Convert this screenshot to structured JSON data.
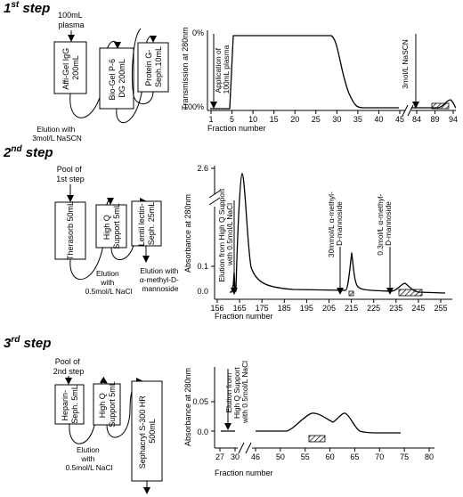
{
  "steps": [
    {
      "heading": "1",
      "heading_sup": "st",
      "heading_word": " step",
      "input_label": [
        "100mL",
        "plasma"
      ],
      "columns": [
        [
          "Affi-Gel IgG",
          "200mL"
        ],
        [
          "Bio-Gel P-6",
          "DG 200mL"
        ],
        [
          "Protein G-",
          "Seph.10mL"
        ]
      ],
      "elution_label": [
        "Elution with",
        "3mol/L NaSCN"
      ],
      "chart": {
        "ylabel": "Transmission at 280nm",
        "xlabel": "Fraction number",
        "ytick_top": "0%",
        "ytick_bottom": "100%",
        "xticks_a": [
          "1",
          "5",
          "10",
          "15",
          "20",
          "25",
          "30",
          "35",
          "40",
          "45"
        ],
        "xticks_b": [
          "84",
          "89",
          "94"
        ],
        "annotations": [
          [
            "Application of",
            "100mL plasma"
          ],
          [
            "3mol/L NaSCN"
          ]
        ]
      }
    },
    {
      "heading": "2",
      "heading_sup": "nd",
      "heading_word": " step",
      "input_label": [
        "Pool of",
        "1st step"
      ],
      "columns": [
        [
          "Therasorb 50mL"
        ],
        [
          "High Q",
          "Support 5mL"
        ],
        [
          "Lentil lectin-",
          "Seph. 25mL"
        ]
      ],
      "elution_label": [
        "Elution",
        "with",
        "0.5mol/L NaCl"
      ],
      "elution_label_2": [
        "Elution with",
        "α-methyl-D-",
        "mannoside"
      ],
      "chart": {
        "ylabel": "Absorbance at 280nm",
        "xlabel": "Fraction number",
        "yticks": [
          "2.6",
          "0.1",
          "0.0"
        ],
        "xticks": [
          "156",
          "165",
          "175",
          "185",
          "195",
          "205",
          "215",
          "225",
          "235",
          "245",
          "255"
        ],
        "annotations": [
          [
            "Elution from High Q Support",
            "with 0.5mol/L NaCl"
          ],
          [
            "30mmol/L α-methyl-",
            "D-mannoside"
          ],
          [
            "0.3mol/L α-methyl-",
            "D-mannoside"
          ]
        ]
      }
    },
    {
      "heading": "3",
      "heading_sup": "rd",
      "heading_word": " step",
      "input_label": [
        "Pool of",
        "2nd step"
      ],
      "columns": [
        [
          "Heparin-",
          "Seph. 5mL"
        ],
        [
          "High Q",
          "Support 5mL"
        ],
        [
          "Sephacryl S-300 HR",
          "500mL"
        ]
      ],
      "elution_label": [
        "Elution",
        "with",
        "0.5mol/L NaCl"
      ],
      "chart": {
        "ylabel": "Absorbance at 280nm",
        "xlabel": "Fraction number",
        "yticks": [
          "0.05",
          "0.0"
        ],
        "xticks_a": [
          "27",
          "30"
        ],
        "xticks_b": [
          "46",
          "50",
          "55",
          "60",
          "65",
          "70",
          "75",
          "80"
        ],
        "annotations": [
          [
            "Elution from",
            "High Q Support",
            "with 0.5mol/L NaCl"
          ]
        ]
      }
    }
  ]
}
